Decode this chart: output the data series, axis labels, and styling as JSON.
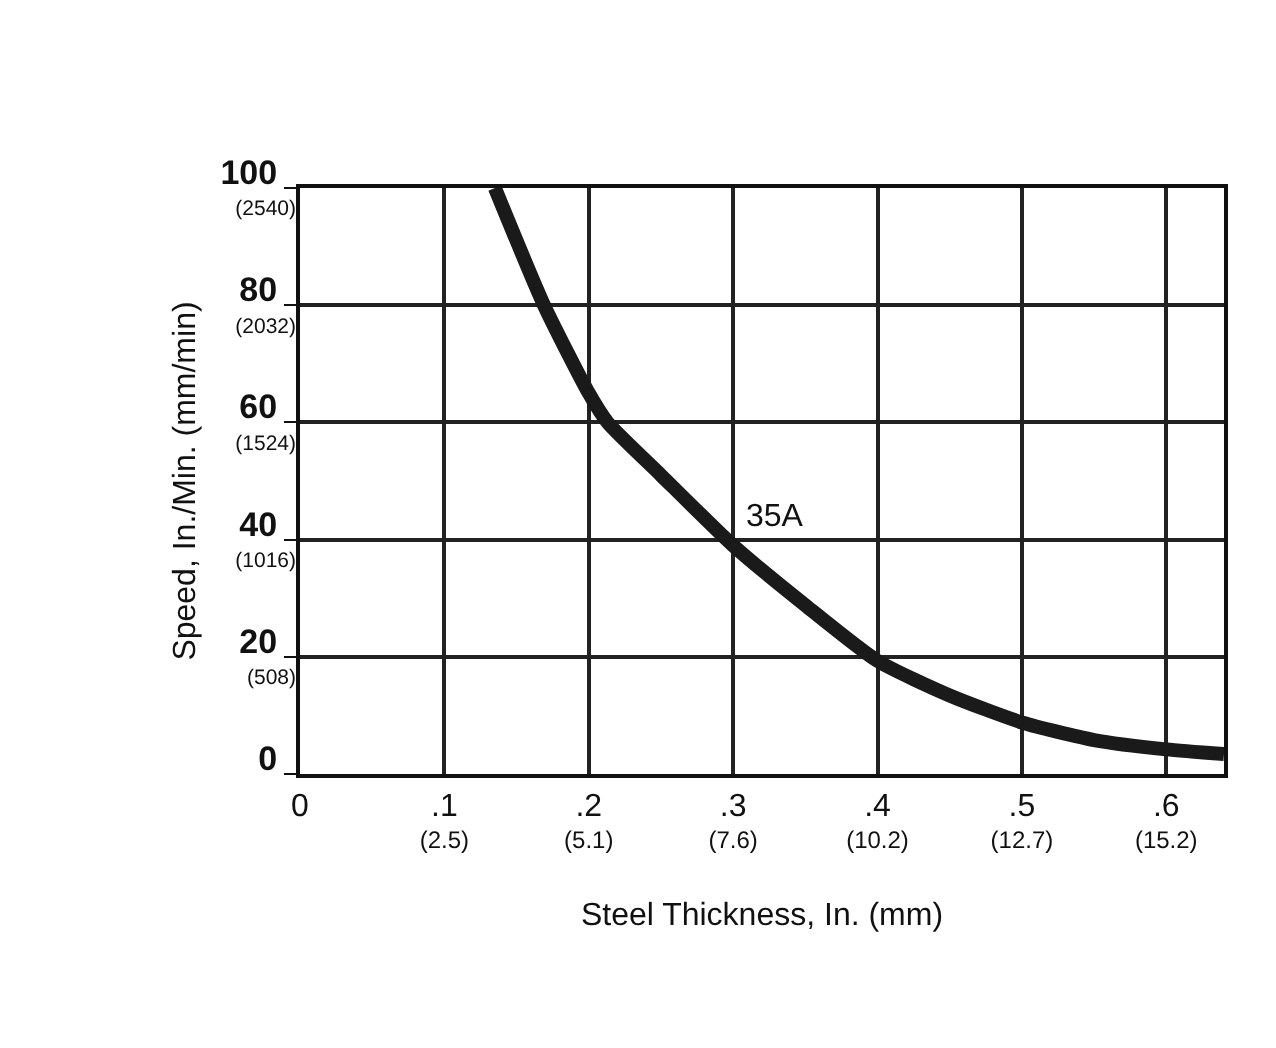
{
  "chart_data": {
    "type": "line",
    "xlabel": "Steel Thickness, In. (mm)",
    "ylabel": "Speed, In./Min. (mm/min)",
    "x": [
      0.135,
      0.169,
      0.2,
      0.213,
      0.25,
      0.3,
      0.35,
      0.4,
      0.45,
      0.5,
      0.55,
      0.6,
      0.64
    ],
    "series": [
      {
        "color": "#1a1a1a",
        "values": [
          100,
          80,
          65,
          60,
          51,
          39,
          28.8,
          19.3,
          13.4,
          8.8,
          5.8,
          4.2,
          3.4
        ]
      }
    ],
    "xlim": [
      0,
      0.64
    ],
    "xticks": [
      0,
      {
        "value": 0.1,
        "label": ".1"
      },
      {
        "value": 0.2,
        "label": ".2"
      },
      {
        "value": 0.3,
        "label": ".3"
      },
      {
        "value": 0.4,
        "label": ".4"
      },
      {
        "value": 0.5,
        "label": ".5"
      },
      {
        "value": 0.6,
        "label": ".6"
      }
    ],
    "x2lim": [
      0,
      16.256
    ],
    "x2ticks": [
      {
        "value": 2.54,
        "label": "(2.5)"
      },
      {
        "value": 5.08,
        "label": "(5.1)"
      },
      {
        "value": 7.62,
        "label": "(7.6)"
      },
      {
        "value": 10.16,
        "label": "(10.2)"
      },
      {
        "value": 12.7,
        "label": "(12.7)"
      },
      {
        "value": 15.24,
        "label": "(15.2)"
      }
    ],
    "ylim": [
      0,
      100
    ],
    "yticks": [
      0,
      20,
      40,
      60,
      80,
      100
    ],
    "y2lim": [
      0,
      2540
    ],
    "y2ticks": [
      {
        "value": 508,
        "label": "(508)"
      },
      {
        "value": 1016,
        "label": "(1016)"
      },
      {
        "value": 1524,
        "label": "(1524)"
      },
      {
        "value": 2032,
        "label": "(2032)"
      },
      {
        "value": 2540,
        "label": "(2540)"
      }
    ],
    "annotations": [
      {
        "text": "35A",
        "x": 0.3,
        "y": 39
      }
    ],
    "grid": true,
    "marker": "none",
    "line_style": "solid"
  }
}
